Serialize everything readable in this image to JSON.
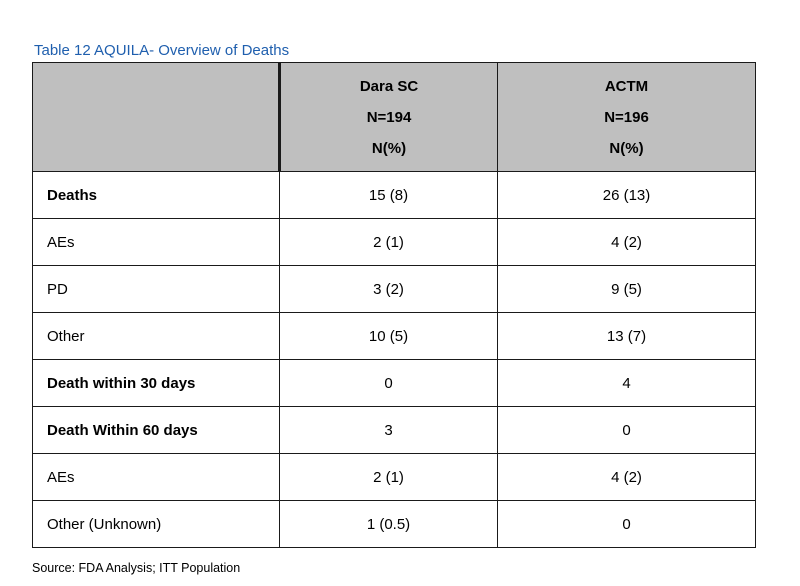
{
  "caption": "Table 12 AQUILA- Overview of Deaths",
  "table": {
    "headers": [
      {
        "lines": [
          "",
          "",
          ""
        ]
      },
      {
        "lines": [
          "Dara SC",
          "N=194",
          "N(%)"
        ]
      },
      {
        "lines": [
          "ACTM",
          "N=196",
          "N(%)"
        ]
      }
    ],
    "rows": [
      {
        "label": "Deaths",
        "bold": true,
        "dara_sc": "15 (8)",
        "actm": "26 (13)"
      },
      {
        "label": "AEs",
        "bold": false,
        "dara_sc": "2 (1)",
        "actm": "4 (2)"
      },
      {
        "label": "PD",
        "bold": false,
        "dara_sc": "3 (2)",
        "actm": "9 (5)"
      },
      {
        "label": "Other",
        "bold": false,
        "dara_sc": "10 (5)",
        "actm": "13 (7)"
      },
      {
        "label": "Death within 30 days",
        "bold": true,
        "dara_sc": "0",
        "actm": "4"
      },
      {
        "label": "Death Within 60 days",
        "bold": true,
        "dara_sc": "3",
        "actm": "0"
      },
      {
        "label": "AEs",
        "bold": false,
        "dara_sc": "2 (1)",
        "actm": "4 (2)"
      },
      {
        "label": "Other (Unknown)",
        "bold": false,
        "dara_sc": "1 (0.5)",
        "actm": "0"
      }
    ]
  },
  "source": "Source: FDA Analysis; ITT Population"
}
